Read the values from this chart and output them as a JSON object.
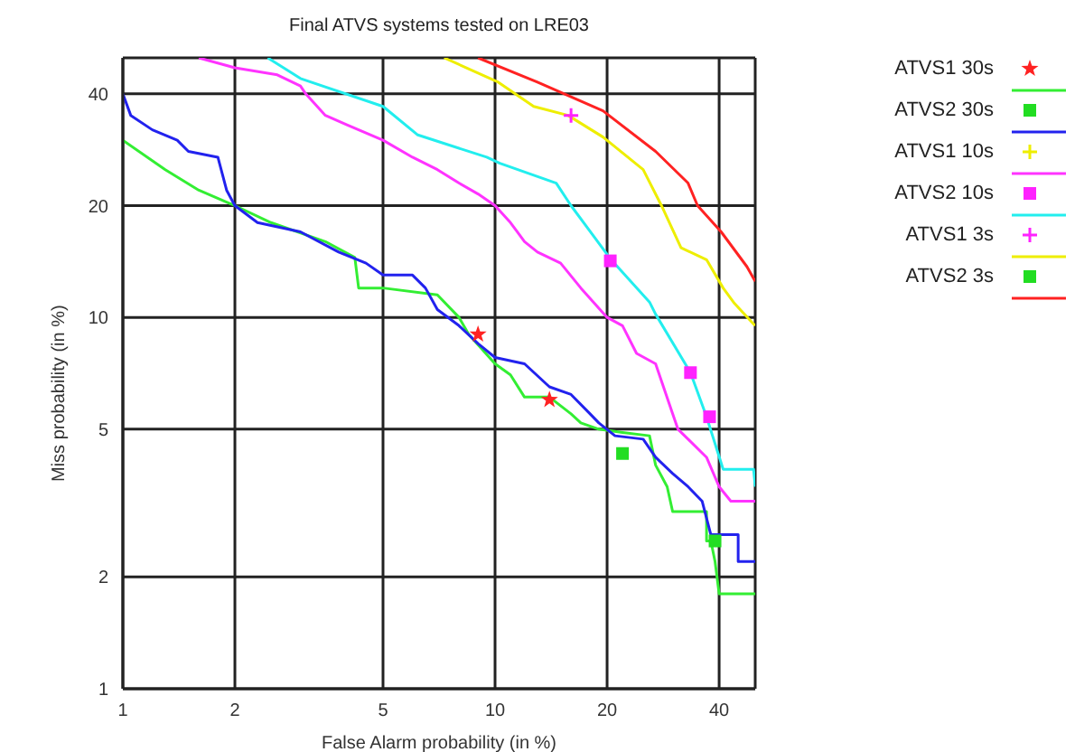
{
  "chart_data": {
    "type": "line",
    "title": "Final ATVS systems tested on LRE03",
    "xlabel": "False Alarm probability (in %)",
    "ylabel": "Miss probability (in %)",
    "xlim": [
      1,
      50
    ],
    "ylim": [
      1,
      50
    ],
    "xticks": [
      1,
      2,
      5,
      10,
      20,
      40
    ],
    "yticks": [
      1,
      2,
      5,
      10,
      20,
      40
    ],
    "grid": true,
    "log": "xy",
    "legend": "right",
    "line_style": "solid",
    "series": [
      {
        "type": "line",
        "color": "#33ee33",
        "marker": "none",
        "x": [
          1,
          1.3,
          1.6,
          2,
          2.5,
          3.5,
          4.2,
          4.3,
          5,
          7,
          8,
          8.5,
          10,
          11,
          12,
          14,
          16,
          17,
          19,
          22,
          26,
          27,
          29,
          30,
          37,
          37,
          38,
          39,
          40,
          50
        ],
        "values": [
          30,
          25,
          22,
          20,
          18,
          16,
          14.5,
          12,
          12,
          11.5,
          10,
          9,
          7.5,
          7,
          6.1,
          6.1,
          5.5,
          5.2,
          5,
          4.9,
          4.8,
          4,
          3.5,
          3,
          3,
          2.5,
          2.5,
          2.2,
          1.8,
          1.8
        ]
      },
      {
        "type": "line",
        "color": "#2222ee",
        "marker": "none",
        "x": [
          1,
          1.05,
          1.2,
          1.4,
          1.5,
          1.8,
          1.9,
          2,
          2.3,
          3,
          3.8,
          4.5,
          5,
          6,
          6.5,
          7,
          8,
          9,
          10,
          12,
          14,
          16,
          18,
          19,
          21,
          25,
          27,
          30,
          33,
          36,
          38,
          45,
          45,
          50
        ],
        "values": [
          40,
          35,
          32,
          30,
          28,
          27,
          22,
          20,
          18,
          17,
          15,
          14,
          13,
          13,
          12,
          10.5,
          9.5,
          8.5,
          7.8,
          7.5,
          6.5,
          6.2,
          5.5,
          5.2,
          4.8,
          4.7,
          4.2,
          3.8,
          3.5,
          3.2,
          2.6,
          2.6,
          2.2,
          2.2
        ]
      },
      {
        "type": "line",
        "color": "#ff33ff",
        "marker": "none",
        "x": [
          1.6,
          2,
          2.6,
          3,
          3.1,
          3.5,
          4,
          5,
          6,
          7,
          8,
          9,
          10,
          11,
          12,
          13,
          15,
          17,
          20,
          22,
          24,
          27,
          30,
          31,
          37,
          40,
          43,
          50
        ],
        "values": [
          50,
          47,
          45,
          42,
          40,
          35,
          33,
          30,
          27,
          25,
          23,
          21.5,
          20,
          18,
          16,
          15,
          14,
          12,
          10,
          9.5,
          8,
          7.5,
          5.5,
          5,
          4.2,
          3.5,
          3.2,
          3.2
        ]
      },
      {
        "type": "line",
        "color": "#22eeee",
        "marker": "none",
        "x": [
          2.45,
          3,
          5,
          6.2,
          9.5,
          10.3,
          14.6,
          16,
          20.5,
          26,
          27,
          33.5,
          37,
          41,
          49.5,
          50
        ],
        "values": [
          50,
          44,
          37,
          31,
          27,
          26,
          23,
          20,
          14.3,
          11,
          10.2,
          7.1,
          5.4,
          3.9,
          3.9,
          3.5
        ]
      },
      {
        "type": "line",
        "color": "#eeee00",
        "marker": "none",
        "x": [
          7.3,
          10.2,
          12.7,
          15.7,
          19.5,
          25,
          28,
          31.6,
          37,
          41,
          44,
          49.5,
          50
        ],
        "values": [
          50,
          43,
          37,
          35,
          30.6,
          25,
          20,
          15.4,
          14.3,
          12,
          10.9,
          9.6,
          9.5
        ]
      },
      {
        "type": "line",
        "color": "#ff2222",
        "marker": "none",
        "x": [
          9,
          13,
          19.5,
          27,
          33,
          35,
          40.5,
          47.5,
          50
        ],
        "values": [
          50,
          43,
          36,
          28,
          23,
          20,
          17,
          13.7,
          12.5
        ]
      },
      {
        "type": "scatter",
        "name": "ATVS1 30s",
        "color": "#ff2222",
        "marker": "star",
        "x": [
          9,
          14
        ],
        "values": [
          9,
          6
        ]
      },
      {
        "type": "scatter",
        "name": "ATVS2 30s",
        "color": "#22dd22",
        "marker": "square",
        "x": [
          22,
          39
        ],
        "values": [
          4.3,
          2.5
        ]
      },
      {
        "type": "scatter",
        "name": "ATVS1 10s",
        "color": "#eeee00",
        "marker": "cross"
      },
      {
        "type": "scatter",
        "name": "ATVS2 10s",
        "color": "#ff22ff",
        "marker": "square",
        "x": [
          20.4,
          33.5,
          37.7
        ],
        "values": [
          14.2,
          7.1,
          5.4
        ]
      },
      {
        "type": "scatter",
        "name": "ATVS1 3s",
        "color": "#ff22ff",
        "marker": "cross",
        "x": [
          16
        ],
        "values": [
          35
        ]
      },
      {
        "type": "scatter",
        "name": "ATVS2 3s",
        "color": "#22dd22",
        "marker": "square"
      }
    ]
  }
}
